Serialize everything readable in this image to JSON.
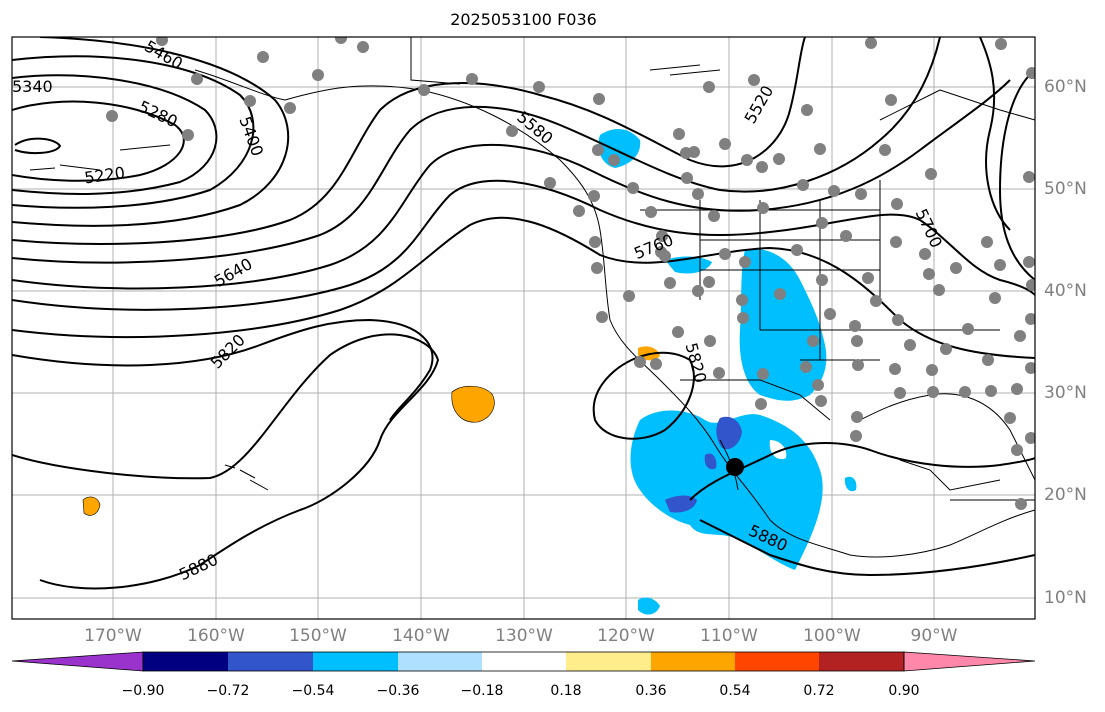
{
  "title": "2025053100 F036",
  "longitude_labels": [
    {
      "text": "170°W",
      "lon": -170
    },
    {
      "text": "160°W",
      "lon": -160
    },
    {
      "text": "150°W",
      "lon": -150
    },
    {
      "text": "140°W",
      "lon": -140
    },
    {
      "text": "130°W",
      "lon": -130
    },
    {
      "text": "120°W",
      "lon": -120
    },
    {
      "text": "110°W",
      "lon": -110
    },
    {
      "text": "100°W",
      "lon": -100
    },
    {
      "text": "90°W",
      "lon": -90
    }
  ],
  "latitude_labels": [
    {
      "text": "60°N",
      "lat": 60
    },
    {
      "text": "50°N",
      "lat": 50
    },
    {
      "text": "40°N",
      "lat": 40
    },
    {
      "text": "30°N",
      "lat": 30
    },
    {
      "text": "20°N",
      "lat": 20
    },
    {
      "text": "10°N",
      "lat": 10
    }
  ],
  "contour_labels": [
    "5460",
    "5340",
    "5280",
    "5220",
    "5400",
    "5640",
    "5820",
    "5880",
    "5580",
    "5760",
    "5520",
    "5700",
    "5820",
    "5880"
  ],
  "colorbar": {
    "colors": [
      "#9933cc",
      "#000080",
      "#3355cc",
      "#00bfff",
      "#b0e0ff",
      "#ffffff",
      "#ffec8b",
      "#ffa500",
      "#ff4500",
      "#b22222",
      "#ff88aa"
    ],
    "tick_labels": [
      "−0.90",
      "−0.72",
      "−0.54",
      "−0.36",
      "−0.18",
      "0.18",
      "0.36",
      "0.54",
      "0.72",
      "0.90"
    ]
  }
}
